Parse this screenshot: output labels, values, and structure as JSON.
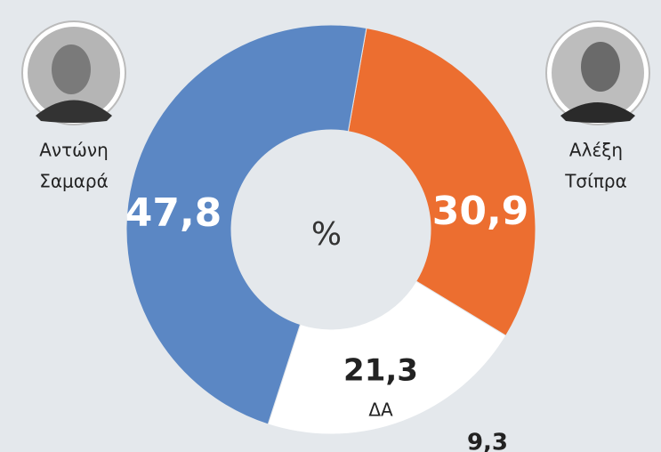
{
  "chart_data": {
    "type": "donut",
    "categories": [
      [
        "Αντώνη",
        "Σαμαρά"
      ],
      [
        "Αλέξη",
        "Τσίπρα"
      ],
      [
        "ΔΑ"
      ]
    ],
    "values": [
      47.8,
      30.9,
      21.3
    ],
    "value_labels": [
      "47,8",
      "30,9",
      "21,3"
    ],
    "colors": [
      "#5b87c4",
      "#ec6e30",
      "#ffffff"
    ],
    "center_label": "%",
    "extra_label": "9,3"
  }
}
